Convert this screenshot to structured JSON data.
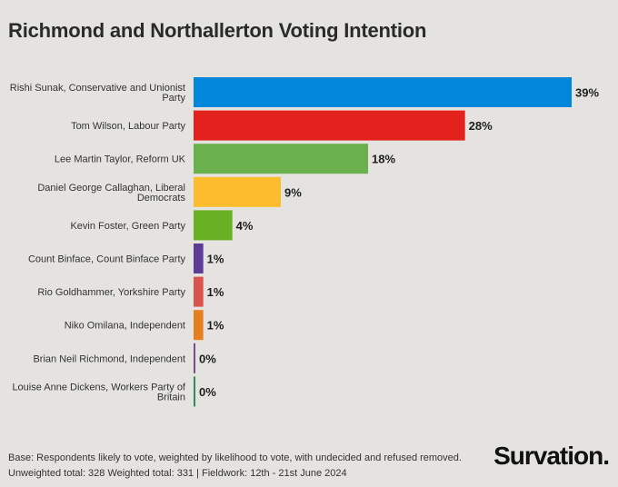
{
  "chart_data": {
    "type": "bar",
    "orientation": "horizontal",
    "title": "Richmond and Northallerton Voting Intention",
    "categories": [
      "Rishi Sunak, Conservative and Unionist Party",
      "Tom Wilson, Labour Party",
      "Lee Martin Taylor, Reform UK",
      "Daniel George Callaghan, Liberal Democrats",
      "Kevin Foster, Green Party",
      "Count Binface, Count Binface Party",
      "Rio Goldhammer, Yorkshire Party",
      "Niko Omilana, Independent",
      "Brian Neil Richmond, Independent",
      "Louise Anne Dickens, Workers Party of Britain"
    ],
    "label_lines": [
      [
        "Rishi Sunak, Conservative and Unionist",
        "Party"
      ],
      [
        "Tom Wilson, Labour Party"
      ],
      [
        "Lee Martin Taylor, Reform UK"
      ],
      [
        "Daniel George Callaghan, Liberal",
        "Democrats"
      ],
      [
        "Kevin Foster, Green Party"
      ],
      [
        "Count Binface, Count Binface Party"
      ],
      [
        "Rio Goldhammer, Yorkshire Party"
      ],
      [
        "Niko Omilana, Independent"
      ],
      [
        "Brian Neil Richmond, Independent"
      ],
      [
        "Louise Anne Dickens, Workers Party of",
        "Britain"
      ]
    ],
    "values": [
      39,
      28,
      18,
      9,
      4,
      1,
      1,
      1,
      0,
      0
    ],
    "value_labels": [
      "39%",
      "28%",
      "18%",
      "9%",
      "4%",
      "1%",
      "1%",
      "1%",
      "0%",
      "0%"
    ],
    "colors": [
      "#0087dc",
      "#e4221d",
      "#6ab04c",
      "#fbbd2e",
      "#6ab023",
      "#5c3d96",
      "#d9534f",
      "#e67e22",
      "#7a4a90",
      "#2e8b57"
    ],
    "xlim": [
      0,
      39
    ],
    "unit": "%"
  },
  "footer": {
    "line1": "Base: Respondents likely to vote, weighted by likelihood to vote, with undecided and refused removed.",
    "line2": "Unweighted total: 328 Weighted total: 331 | Fieldwork: 12th - 21st June 2024"
  },
  "brand": {
    "name": "Survation."
  }
}
